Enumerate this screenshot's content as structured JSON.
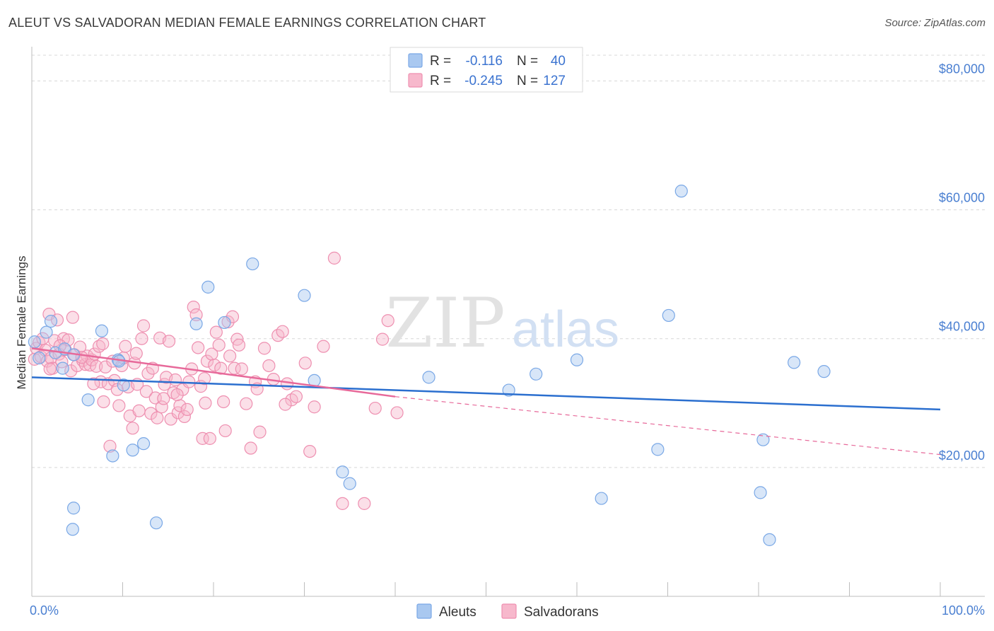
{
  "title": "ALEUT VS SALVADORAN MEDIAN FEMALE EARNINGS CORRELATION CHART",
  "source": "Source: ZipAtlas.com",
  "watermark": {
    "zip": "ZIP",
    "atlas": "atlas"
  },
  "colors": {
    "aleut_fill": "#a9c8f0",
    "aleut_stroke": "#7aa8e6",
    "aleut_line": "#2b6fcf",
    "salv_fill": "#f7b8cc",
    "salv_stroke": "#ee8fb0",
    "salv_line": "#e7699a",
    "axis_label": "#4a7fd1",
    "grid": "#d8d8d8"
  },
  "legend": {
    "rows": [
      {
        "r_label": "R =",
        "r_value": "-0.116",
        "n_label": "N =",
        "n_value": "40"
      },
      {
        "r_label": "R =",
        "r_value": "-0.245",
        "n_label": "N =",
        "n_value": "127"
      }
    ]
  },
  "bottom_legend": {
    "aleut": "Aleuts",
    "salv": "Salvadorans"
  },
  "chart_data": {
    "type": "scatter",
    "title": "ALEUT VS SALVADORAN MEDIAN FEMALE EARNINGS CORRELATION CHART",
    "xlabel": "",
    "ylabel": "Median Female Earnings",
    "xlim": [
      0,
      100
    ],
    "ylim": [
      0,
      84000
    ],
    "x_tick_labels": {
      "left": "0.0%",
      "right": "100.0%"
    },
    "y_ticks": [
      {
        "value": 20000,
        "label": "$20,000"
      },
      {
        "value": 40000,
        "label": "$40,000"
      },
      {
        "value": 60000,
        "label": "$60,000"
      },
      {
        "value": 80000,
        "label": "$80,000"
      }
    ],
    "series": [
      {
        "name": "Aleuts",
        "trend": {
          "x0": 0,
          "y0": 34000,
          "x1": 100,
          "y1": 29000
        },
        "points": [
          [
            0.3,
            39500
          ],
          [
            0.8,
            37000
          ],
          [
            1.6,
            41000
          ],
          [
            2.1,
            42700
          ],
          [
            2.6,
            37800
          ],
          [
            3.4,
            35400
          ],
          [
            3.6,
            38400
          ],
          [
            4.6,
            37500
          ],
          [
            6.2,
            30500
          ],
          [
            7.7,
            41200
          ],
          [
            8.9,
            21800
          ],
          [
            9.5,
            36700
          ],
          [
            10.1,
            32800
          ],
          [
            11.1,
            22700
          ],
          [
            12.3,
            23700
          ],
          [
            13.7,
            11400
          ],
          [
            18.1,
            42300
          ],
          [
            19.4,
            48000
          ],
          [
            21.2,
            42500
          ],
          [
            24.3,
            51600
          ],
          [
            30.0,
            46700
          ],
          [
            31.1,
            33500
          ],
          [
            34.2,
            19300
          ],
          [
            35.0,
            17500
          ],
          [
            43.7,
            34000
          ],
          [
            52.5,
            32000
          ],
          [
            55.5,
            34500
          ],
          [
            60.0,
            36700
          ],
          [
            62.7,
            15200
          ],
          [
            68.9,
            22800
          ],
          [
            70.1,
            43600
          ],
          [
            71.5,
            62900
          ],
          [
            80.2,
            16100
          ],
          [
            80.5,
            24300
          ],
          [
            81.2,
            8800
          ],
          [
            83.9,
            36300
          ],
          [
            87.2,
            34900
          ],
          [
            4.6,
            13700
          ],
          [
            4.5,
            10400
          ],
          [
            9.6,
            36500
          ]
        ]
      },
      {
        "name": "Salvadorans",
        "trend": {
          "x0": 0,
          "y0": 38500,
          "x1": 40,
          "y1": 31000
        },
        "trend_dashed": {
          "x0": 40,
          "y0": 31000,
          "x1": 100,
          "y1": 22000
        },
        "points": [
          [
            0.3,
            36800
          ],
          [
            0.5,
            38500
          ],
          [
            0.8,
            39400
          ],
          [
            1.0,
            37200
          ],
          [
            1.2,
            40000
          ],
          [
            1.5,
            38200
          ],
          [
            1.7,
            36500
          ],
          [
            1.9,
            43800
          ],
          [
            2.1,
            37000
          ],
          [
            2.3,
            35400
          ],
          [
            2.5,
            39700
          ],
          [
            2.8,
            42900
          ],
          [
            3.0,
            37600
          ],
          [
            3.3,
            36400
          ],
          [
            3.5,
            40000
          ],
          [
            3.7,
            38300
          ],
          [
            4.0,
            39800
          ],
          [
            4.3,
            35000
          ],
          [
            4.5,
            43300
          ],
          [
            4.7,
            37500
          ],
          [
            5.0,
            35800
          ],
          [
            5.3,
            38700
          ],
          [
            5.6,
            36600
          ],
          [
            5.9,
            36000
          ],
          [
            6.1,
            37300
          ],
          [
            6.4,
            35900
          ],
          [
            6.6,
            36700
          ],
          [
            6.9,
            37600
          ],
          [
            7.1,
            35700
          ],
          [
            7.4,
            38800
          ],
          [
            7.6,
            33300
          ],
          [
            7.9,
            30200
          ],
          [
            8.1,
            35600
          ],
          [
            8.4,
            33000
          ],
          [
            8.6,
            23300
          ],
          [
            8.9,
            36500
          ],
          [
            9.1,
            33500
          ],
          [
            9.4,
            32100
          ],
          [
            9.6,
            29600
          ],
          [
            9.9,
            35800
          ],
          [
            10.1,
            37000
          ],
          [
            10.3,
            38800
          ],
          [
            10.6,
            32500
          ],
          [
            10.8,
            28000
          ],
          [
            11.1,
            26100
          ],
          [
            11.3,
            36200
          ],
          [
            11.6,
            32900
          ],
          [
            11.8,
            28800
          ],
          [
            12.1,
            40000
          ],
          [
            12.3,
            42000
          ],
          [
            12.6,
            31800
          ],
          [
            12.8,
            34600
          ],
          [
            13.1,
            28400
          ],
          [
            13.3,
            35400
          ],
          [
            13.6,
            30800
          ],
          [
            13.8,
            27700
          ],
          [
            14.1,
            40100
          ],
          [
            14.3,
            29400
          ],
          [
            14.6,
            32900
          ],
          [
            14.8,
            34000
          ],
          [
            15.1,
            39600
          ],
          [
            15.3,
            27500
          ],
          [
            15.6,
            31600
          ],
          [
            15.8,
            33600
          ],
          [
            16.1,
            28500
          ],
          [
            16.3,
            29600
          ],
          [
            16.6,
            32100
          ],
          [
            16.8,
            27900
          ],
          [
            17.1,
            29000
          ],
          [
            17.3,
            33300
          ],
          [
            17.6,
            35300
          ],
          [
            17.8,
            44900
          ],
          [
            18.1,
            43700
          ],
          [
            18.3,
            38600
          ],
          [
            18.6,
            32600
          ],
          [
            18.8,
            24500
          ],
          [
            19.1,
            30000
          ],
          [
            19.3,
            36500
          ],
          [
            19.6,
            24500
          ],
          [
            19.8,
            37600
          ],
          [
            20.1,
            35900
          ],
          [
            20.3,
            41000
          ],
          [
            20.6,
            39000
          ],
          [
            20.8,
            35400
          ],
          [
            21.1,
            30200
          ],
          [
            21.3,
            25700
          ],
          [
            21.6,
            42600
          ],
          [
            21.8,
            37300
          ],
          [
            22.1,
            43400
          ],
          [
            22.3,
            35400
          ],
          [
            22.6,
            39900
          ],
          [
            22.8,
            39000
          ],
          [
            23.1,
            35300
          ],
          [
            23.6,
            29900
          ],
          [
            24.1,
            23000
          ],
          [
            24.6,
            33300
          ],
          [
            25.1,
            25500
          ],
          [
            25.6,
            38500
          ],
          [
            26.1,
            35800
          ],
          [
            26.6,
            33700
          ],
          [
            27.1,
            40500
          ],
          [
            27.6,
            41100
          ],
          [
            28.1,
            33000
          ],
          [
            28.6,
            30500
          ],
          [
            29.1,
            31000
          ],
          [
            30.1,
            36200
          ],
          [
            30.6,
            22500
          ],
          [
            31.1,
            29400
          ],
          [
            32.1,
            38800
          ],
          [
            33.3,
            52500
          ],
          [
            34.2,
            14400
          ],
          [
            36.6,
            14400
          ],
          [
            37.8,
            29200
          ],
          [
            38.6,
            39900
          ],
          [
            39.2,
            42800
          ],
          [
            40.2,
            28500
          ],
          [
            2.0,
            35300
          ],
          [
            5.5,
            37100
          ],
          [
            6.8,
            33000
          ],
          [
            11.5,
            37700
          ],
          [
            14.5,
            30700
          ],
          [
            16.0,
            31300
          ],
          [
            19.0,
            33800
          ],
          [
            24.8,
            32200
          ],
          [
            27.9,
            29800
          ],
          [
            3.1,
            38900
          ],
          [
            7.8,
            39200
          ]
        ]
      }
    ]
  }
}
